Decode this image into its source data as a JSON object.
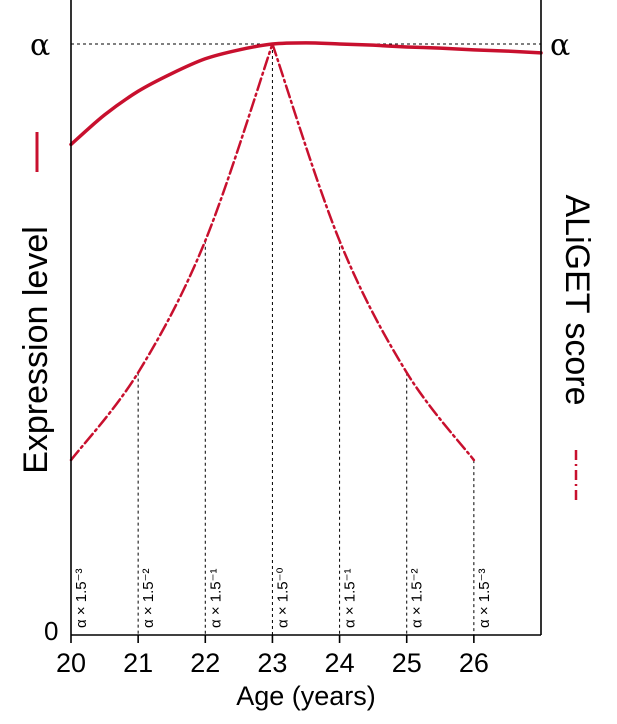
{
  "chart_data": {
    "type": "line",
    "x_ticks": [
      "20",
      "21",
      "22",
      "23",
      "24",
      "25",
      "26"
    ],
    "x_label": "Age (years)",
    "y_label_left": "Expression level",
    "y_label_right": "ALiGET score",
    "y_zero_label": "0",
    "alpha_left": "α",
    "alpha_right": "α",
    "xlim": [
      20,
      27
    ],
    "ylim": [
      0,
      1.1
    ],
    "series": [
      {
        "style": "solid",
        "color": "#c8102e",
        "x": [
          20,
          20.5,
          21,
          21.5,
          22,
          22.5,
          23,
          23.5,
          24,
          24.5,
          25,
          25.5,
          26,
          26.5,
          27
        ],
        "y": [
          0.83,
          0.88,
          0.92,
          0.95,
          0.975,
          0.99,
          1.0,
          1.002,
          1.0,
          0.998,
          0.995,
          0.993,
          0.99,
          0.988,
          0.985
        ]
      },
      {
        "style": "dashdot",
        "color": "#c8102e",
        "x": [
          20,
          21,
          22,
          23,
          24,
          25,
          26
        ],
        "y": [
          0.296,
          0.444,
          0.667,
          1.0,
          0.667,
          0.444,
          0.296
        ]
      }
    ],
    "annotations": [
      "α × 1.5⁻³",
      "α × 1.5⁻²",
      "α × 1.5⁻¹",
      "α × 1.5⁻⁰",
      "α × 1.5⁻¹",
      "α × 1.5⁻²",
      "α × 1.5⁻³"
    ]
  }
}
